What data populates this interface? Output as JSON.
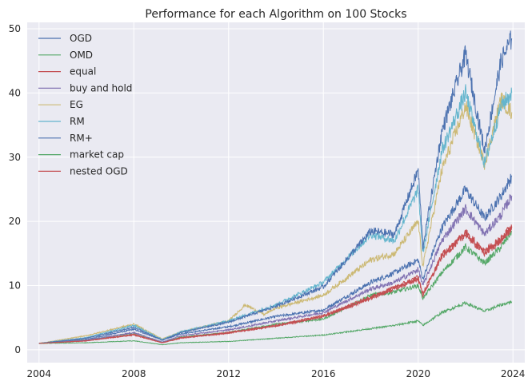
{
  "chart_data": {
    "type": "line",
    "title": "Performance for each Algorithm on 100 Stocks",
    "xlabel": "",
    "ylabel": "",
    "xlim": [
      2003.5,
      2024.5
    ],
    "ylim": [
      -2,
      51
    ],
    "xticks": [
      2004,
      2008,
      2012,
      2016,
      2020,
      2024
    ],
    "xtick_labels": [
      "2004",
      "2008",
      "2012",
      "2016",
      "2020",
      "2024"
    ],
    "yticks": [
      0,
      10,
      20,
      30,
      40,
      50
    ],
    "ytick_labels": [
      "0",
      "10",
      "20",
      "30",
      "40",
      "50"
    ],
    "grid": true,
    "legend_position": "top-left",
    "background": "#EAEAF2",
    "series": [
      {
        "name": "OGD",
        "color": "#4C72B0",
        "x": [
          2004,
          2006,
          2008,
          2009.2,
          2010,
          2012,
          2014,
          2016,
          2018,
          2019,
          2020,
          2020.2,
          2021,
          2022,
          2022.8,
          2023.5,
          2023.95
        ],
        "y": [
          1,
          1.6,
          3.2,
          1.5,
          2.5,
          3.6,
          5.2,
          6.2,
          10.5,
          12,
          14,
          11,
          19,
          25,
          20.5,
          24,
          27
        ]
      },
      {
        "name": "OMD",
        "color": "#55A868",
        "x": [
          2004,
          2006,
          2008,
          2009.2,
          2010,
          2012,
          2014,
          2016,
          2018,
          2019,
          2020,
          2020.2,
          2021,
          2022,
          2022.8,
          2023.5,
          2023.95
        ],
        "y": [
          1,
          1.5,
          2.6,
          1.2,
          2,
          2.7,
          4,
          4.8,
          8.5,
          9,
          10,
          8,
          12,
          16,
          13.5,
          16,
          18.5
        ]
      },
      {
        "name": "equal",
        "color": "#C44E52",
        "x": [
          2004,
          2006,
          2008,
          2009.2,
          2010,
          2012,
          2014,
          2016,
          2018,
          2019,
          2020,
          2020.2,
          2021,
          2022,
          2022.8,
          2023.5,
          2023.95
        ],
        "y": [
          1,
          1.4,
          2.3,
          1.1,
          1.8,
          2.6,
          3.7,
          5.2,
          8,
          9.5,
          11,
          8.5,
          14.5,
          18,
          15,
          17,
          19
        ]
      },
      {
        "name": "buy and hold",
        "color": "#8172B2",
        "x": [
          2004,
          2006,
          2008,
          2009.2,
          2010,
          2012,
          2014,
          2016,
          2018,
          2019,
          2020,
          2020.2,
          2021,
          2022,
          2022.8,
          2023.5,
          2023.95
        ],
        "y": [
          1,
          1.5,
          2.7,
          1.2,
          2.2,
          3.1,
          4.5,
          5.8,
          9.5,
          10.5,
          12.5,
          10,
          17,
          22,
          18,
          21,
          24
        ]
      },
      {
        "name": "EG",
        "color": "#CCB974",
        "x": [
          2004,
          2006,
          2008,
          2009.2,
          2010,
          2012,
          2012.7,
          2013.5,
          2014,
          2016,
          2018,
          2019,
          2020,
          2020.2,
          2021,
          2022,
          2022.8,
          2023.5,
          2023.95
        ],
        "y": [
          1,
          2.2,
          4,
          1.7,
          2.8,
          4.5,
          7,
          5.5,
          6.5,
          8.5,
          14,
          15,
          20,
          13,
          28,
          38,
          29,
          39,
          37
        ]
      },
      {
        "name": "RM",
        "color": "#64B5CD",
        "x": [
          2004,
          2006,
          2008,
          2009.2,
          2010,
          2012,
          2014,
          2016,
          2018,
          2019,
          2020,
          2020.2,
          2021,
          2022,
          2022.8,
          2023.5,
          2023.95
        ],
        "y": [
          1,
          1.9,
          3.8,
          1.6,
          2.8,
          4.5,
          7,
          10.5,
          18,
          17,
          25,
          15,
          31,
          40,
          29,
          38,
          40
        ]
      },
      {
        "name": "RM+",
        "color": "#4C72B0",
        "x": [
          2004,
          2006,
          2008,
          2009.2,
          2010,
          2012,
          2014,
          2016,
          2018,
          2019,
          2020,
          2020.2,
          2021,
          2022,
          2022.8,
          2023.5,
          2023.95
        ],
        "y": [
          1,
          1.8,
          3.5,
          1.5,
          2.7,
          4.3,
          6.8,
          9.8,
          18.5,
          18,
          28,
          16,
          34,
          46,
          31,
          45,
          48.5
        ]
      },
      {
        "name": "market cap",
        "color": "#55A868",
        "x": [
          2004,
          2006,
          2008,
          2009.2,
          2010,
          2012,
          2014,
          2016,
          2018,
          2019,
          2020,
          2020.2,
          2021,
          2022,
          2022.8,
          2023.5,
          2023.95
        ],
        "y": [
          1,
          1.1,
          1.4,
          0.8,
          1.1,
          1.3,
          1.8,
          2.3,
          3.3,
          3.8,
          4.5,
          3.8,
          5.8,
          7.3,
          6,
          7,
          7.5
        ]
      },
      {
        "name": "nested OGD",
        "color": "#C44E52",
        "x": [
          2004,
          2006,
          2008,
          2009.2,
          2010,
          2012,
          2014,
          2016,
          2018,
          2019,
          2020,
          2020.2,
          2021,
          2022,
          2022.8,
          2023.5,
          2023.95
        ],
        "y": [
          1,
          1.4,
          2.4,
          1.1,
          1.9,
          2.7,
          3.8,
          5.3,
          8.2,
          9.7,
          11.3,
          8.7,
          14.8,
          18.3,
          15.3,
          17.3,
          19.2
        ]
      }
    ]
  }
}
